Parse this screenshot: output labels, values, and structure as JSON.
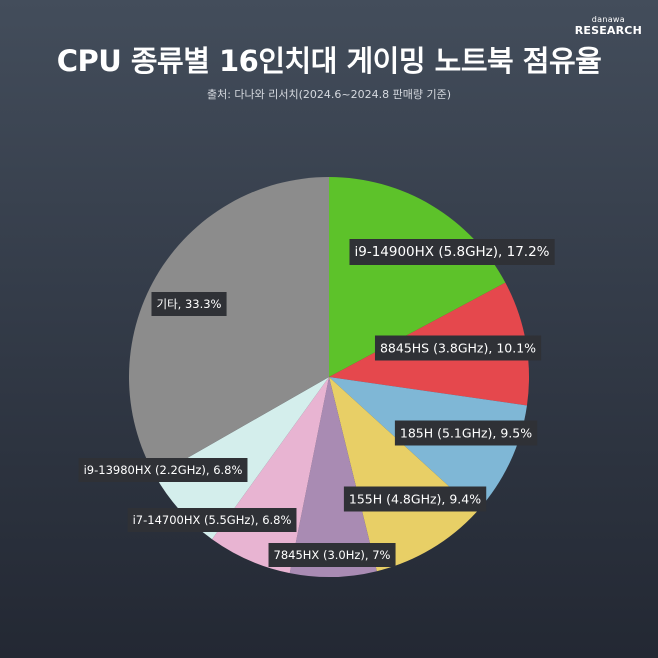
{
  "brand": {
    "small": "danawa",
    "big": "RESEARCH"
  },
  "chart_data": {
    "type": "pie",
    "title": "CPU 종류별 16인치대 게이밍 노트북 점유율",
    "subtitle": "출처: 다나와 리서치(2024.6~2024.8 판매량 기준)",
    "slices": [
      {
        "label": "i9-14900HX (5.8GHz), 17.2%",
        "value": 17.2,
        "color": "#5dc22a"
      },
      {
        "label": "8845HS (3.8GHz), 10.1%",
        "value": 10.1,
        "color": "#e5484d"
      },
      {
        "label": "185H (5.1GHz), 9.5%",
        "value": 9.5,
        "color": "#7fb7d6"
      },
      {
        "label": "155H (4.8GHz), 9.4%",
        "value": 9.4,
        "color": "#e8cf66"
      },
      {
        "label": "7845HX (3.0Hz), 7%",
        "value": 7.0,
        "color": "#a98bb3"
      },
      {
        "label": "i7-14700HX (5.5GHz), 6.8%",
        "value": 6.8,
        "color": "#e8b4d2"
      },
      {
        "label": "i9-13980HX (2.2GHz), 6.8%",
        "value": 6.8,
        "color": "#d4eeec"
      },
      {
        "label": "기타, 33.3%",
        "value": 33.3,
        "color": "#8c8c8c"
      }
    ],
    "legend": "none"
  }
}
